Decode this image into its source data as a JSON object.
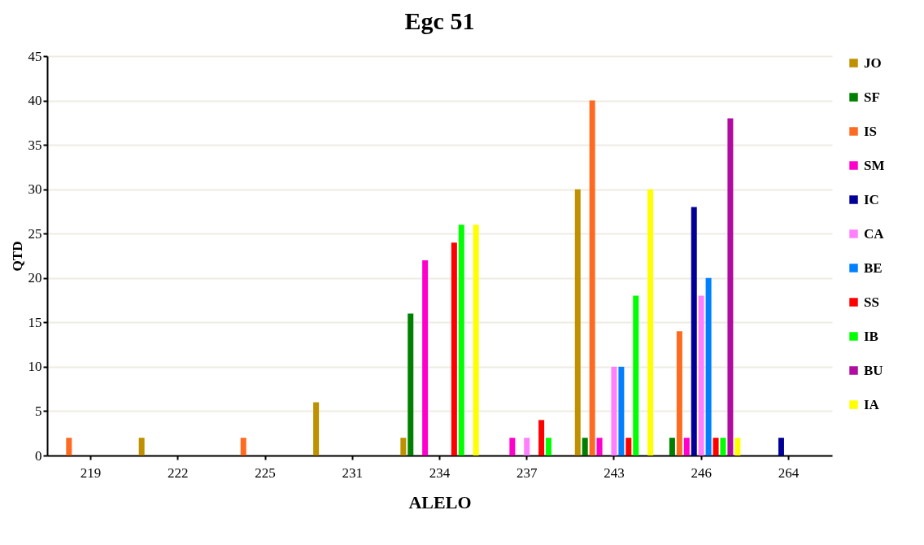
{
  "chart_data": {
    "type": "bar",
    "title": "Egc 51",
    "xlabel": "ALELO",
    "ylabel": "QTD",
    "categories": [
      "219",
      "222",
      "225",
      "231",
      "234",
      "237",
      "243",
      "246",
      "264"
    ],
    "ylim": [
      0,
      45
    ],
    "yticks": [
      0,
      5,
      10,
      15,
      20,
      25,
      30,
      35,
      40,
      45
    ],
    "grid": "y",
    "legend": "right",
    "series": [
      {
        "name": "JO",
        "color": "#bf9000",
        "values": [
          null,
          2,
          null,
          6,
          2,
          null,
          30,
          null,
          null
        ]
      },
      {
        "name": "SF",
        "color": "#008000",
        "values": [
          null,
          null,
          null,
          null,
          16,
          null,
          2,
          2,
          null
        ]
      },
      {
        "name": "IS",
        "color": "#ff6a21",
        "values": [
          2,
          null,
          2,
          null,
          null,
          null,
          40,
          14,
          null
        ]
      },
      {
        "name": "SM",
        "color": "#ff00cc",
        "values": [
          null,
          null,
          null,
          null,
          22,
          2,
          2,
          2,
          null
        ]
      },
      {
        "name": "IC",
        "color": "#000099",
        "values": [
          null,
          null,
          null,
          null,
          null,
          null,
          null,
          28,
          2
        ]
      },
      {
        "name": "CA",
        "color": "#ff80ff",
        "values": [
          null,
          null,
          null,
          null,
          null,
          2,
          10,
          18,
          null
        ]
      },
      {
        "name": "BE",
        "color": "#0080ff",
        "values": [
          null,
          null,
          null,
          null,
          null,
          null,
          10,
          20,
          null
        ]
      },
      {
        "name": "SS",
        "color": "#ff0000",
        "values": [
          null,
          null,
          null,
          null,
          24,
          4,
          2,
          2,
          null
        ]
      },
      {
        "name": "IB",
        "color": "#00ff00",
        "values": [
          null,
          null,
          null,
          null,
          26,
          2,
          18,
          2,
          null
        ]
      },
      {
        "name": "BU",
        "color": "#b00ca0",
        "values": [
          null,
          null,
          null,
          null,
          null,
          null,
          null,
          38,
          null
        ]
      },
      {
        "name": "IA",
        "color": "#ffff00",
        "values": [
          null,
          null,
          null,
          null,
          26,
          null,
          30,
          2,
          null
        ]
      }
    ]
  }
}
